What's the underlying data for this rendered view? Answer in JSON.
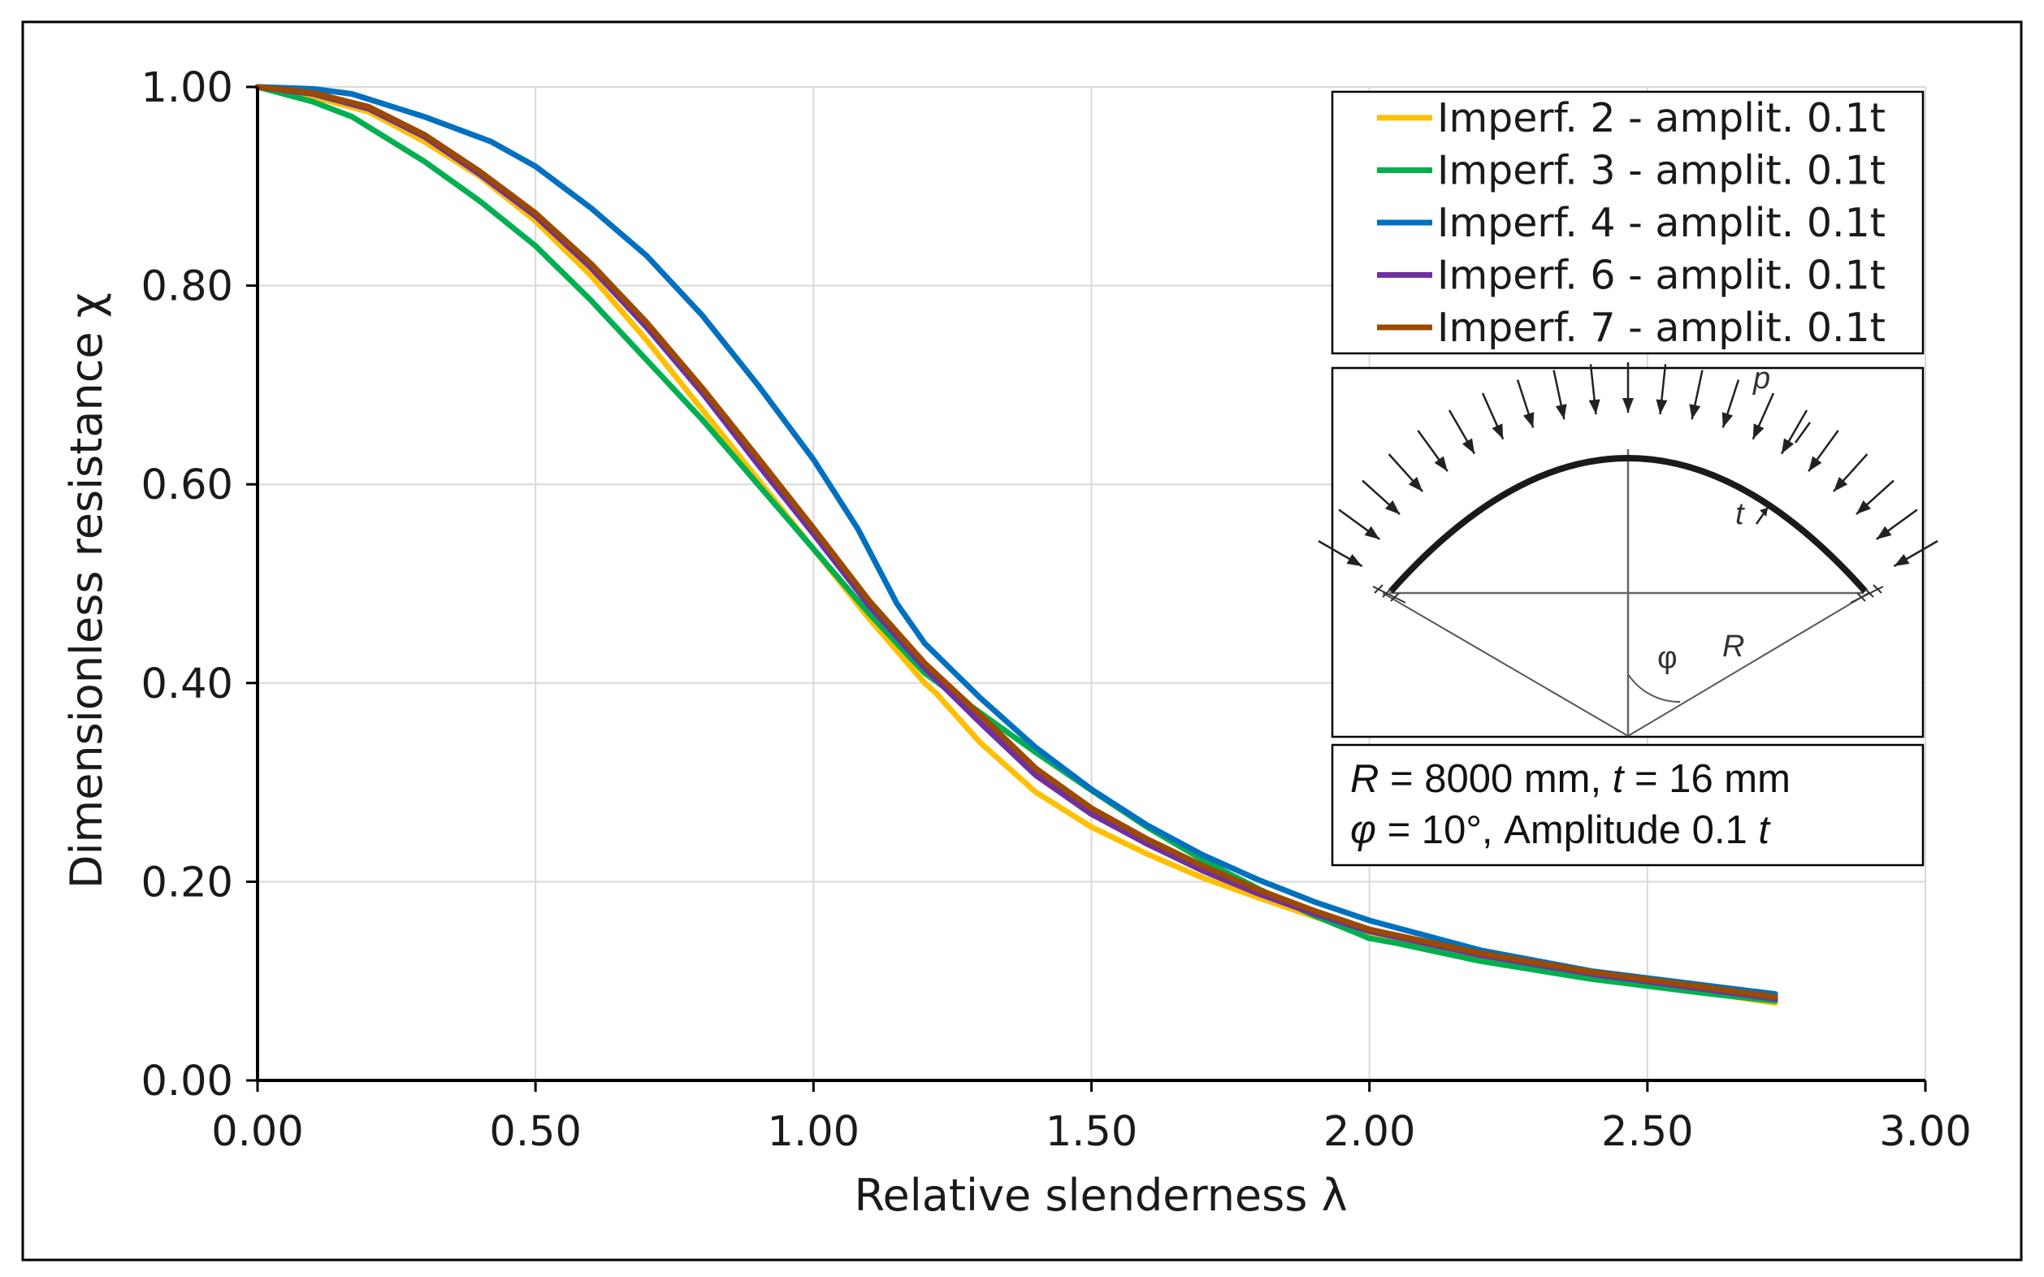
{
  "chart_data": {
    "type": "line",
    "title": "",
    "xlabel": "Relative slenderness   λ",
    "ylabel": "Dimensionless resistance  χ",
    "xlim": [
      0,
      3
    ],
    "ylim": [
      0,
      1
    ],
    "xticks": [
      "0.00",
      "0.50",
      "1.00",
      "1.50",
      "2.00",
      "2.50",
      "3.00"
    ],
    "yticks": [
      "0.00",
      "0.20",
      "0.40",
      "0.60",
      "0.80",
      "1.00"
    ],
    "grid": true,
    "legend_position": "top-right",
    "series": [
      {
        "name": "Imperf. 2 - amplit. 0.1t",
        "color": "#FFC000",
        "x": [
          0,
          0.1,
          0.2,
          0.3,
          0.4,
          0.5,
          0.6,
          0.7,
          0.8,
          0.9,
          1.0,
          1.1,
          1.2,
          1.22,
          1.3,
          1.4,
          1.5,
          1.6,
          1.7,
          1.8,
          1.9,
          2.0,
          2.2,
          2.4,
          2.6,
          2.73
        ],
        "y": [
          1.0,
          0.99,
          0.975,
          0.945,
          0.91,
          0.865,
          0.81,
          0.745,
          0.675,
          0.605,
          0.535,
          0.465,
          0.4,
          0.39,
          0.34,
          0.29,
          0.255,
          0.228,
          0.204,
          0.184,
          0.165,
          0.148,
          0.124,
          0.104,
          0.089,
          0.078
        ]
      },
      {
        "name": "Imperf. 3 - amplit. 0.1t",
        "color": "#00B050",
        "x": [
          0,
          0.1,
          0.17,
          0.3,
          0.4,
          0.5,
          0.6,
          0.7,
          0.8,
          0.9,
          1.0,
          1.1,
          1.2,
          1.3,
          1.4,
          1.5,
          1.6,
          1.7,
          1.8,
          1.9,
          2.0,
          2.05,
          2.2,
          2.4,
          2.6,
          2.73
        ],
        "y": [
          1.0,
          0.985,
          0.97,
          0.925,
          0.885,
          0.84,
          0.785,
          0.725,
          0.665,
          0.6,
          0.535,
          0.47,
          0.41,
          0.37,
          0.33,
          0.292,
          0.255,
          0.222,
          0.193,
          0.166,
          0.143,
          0.138,
          0.12,
          0.102,
          0.088,
          0.08
        ]
      },
      {
        "name": "Imperf. 4 - amplit. 0.1t",
        "color": "#0070C0",
        "x": [
          0,
          0.1,
          0.17,
          0.3,
          0.42,
          0.5,
          0.6,
          0.7,
          0.8,
          0.9,
          1.0,
          1.08,
          1.15,
          1.2,
          1.3,
          1.4,
          1.5,
          1.6,
          1.7,
          1.8,
          1.9,
          2.0,
          2.2,
          2.4,
          2.6,
          2.73
        ],
        "y": [
          1.0,
          0.998,
          0.993,
          0.97,
          0.945,
          0.92,
          0.878,
          0.83,
          0.77,
          0.7,
          0.625,
          0.555,
          0.48,
          0.44,
          0.385,
          0.335,
          0.293,
          0.257,
          0.227,
          0.202,
          0.18,
          0.161,
          0.131,
          0.11,
          0.096,
          0.087
        ]
      },
      {
        "name": "Imperf. 6 - amplit. 0.1t",
        "color": "#7030A0",
        "x": [
          0,
          0.1,
          0.2,
          0.3,
          0.4,
          0.5,
          0.6,
          0.7,
          0.8,
          0.9,
          1.0,
          1.1,
          1.2,
          1.3,
          1.4,
          1.5,
          1.6,
          1.7,
          1.8,
          1.9,
          2.0,
          2.2,
          2.4,
          2.6,
          2.73
        ],
        "y": [
          1.0,
          0.993,
          0.978,
          0.95,
          0.912,
          0.87,
          0.818,
          0.758,
          0.692,
          0.62,
          0.55,
          0.478,
          0.415,
          0.36,
          0.307,
          0.268,
          0.238,
          0.211,
          0.188,
          0.168,
          0.15,
          0.126,
          0.107,
          0.092,
          0.082
        ]
      },
      {
        "name": "Imperf. 7 - amplit. 0.1t",
        "color": "#9C4A00",
        "x": [
          0,
          0.1,
          0.2,
          0.3,
          0.4,
          0.5,
          0.6,
          0.7,
          0.8,
          0.9,
          1.0,
          1.1,
          1.2,
          1.3,
          1.4,
          1.5,
          1.6,
          1.7,
          1.8,
          1.9,
          2.0,
          2.2,
          2.4,
          2.6,
          2.73
        ],
        "y": [
          1.0,
          0.994,
          0.98,
          0.952,
          0.915,
          0.873,
          0.822,
          0.763,
          0.697,
          0.627,
          0.556,
          0.483,
          0.42,
          0.368,
          0.314,
          0.274,
          0.243,
          0.216,
          0.192,
          0.171,
          0.152,
          0.128,
          0.109,
          0.094,
          0.084
        ]
      }
    ],
    "annotations": {
      "load_label": "p",
      "thickness_label": "t",
      "radius_label": "R",
      "angle_label": "φ",
      "params_line1": {
        "r_sym": "R",
        "r_val": " = 8000 mm, ",
        "t_sym": "t",
        "t_val": " = 16 mm"
      },
      "params_line2": {
        "phi_sym": "φ",
        "phi_val": " = 10°, Amplitude 0.1 ",
        "t_sym": "t"
      }
    }
  }
}
